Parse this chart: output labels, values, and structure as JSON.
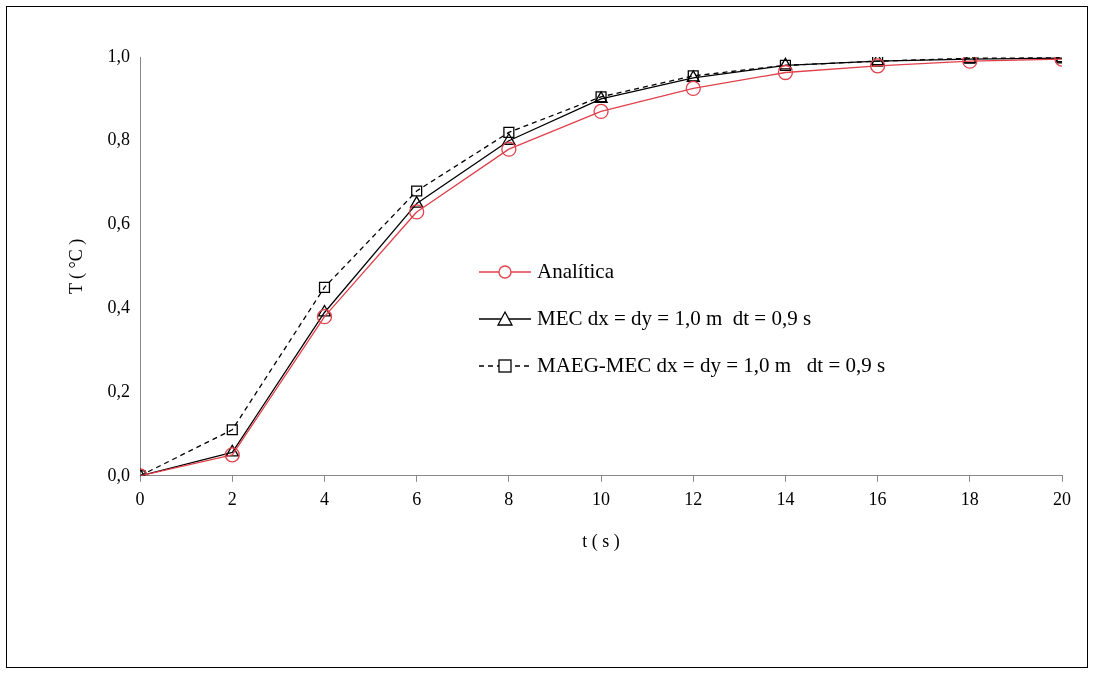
{
  "chart_data": {
    "type": "line",
    "xlabel": "t ( s )",
    "ylabel": "T ( °C )",
    "x": [
      0,
      2,
      4,
      6,
      8,
      10,
      12,
      14,
      16,
      18,
      20
    ],
    "series": [
      {
        "name": "Analítica",
        "color": "#e0404a",
        "marker": "circle",
        "line_style": "solid",
        "values": [
          0,
          0.05,
          0.38,
          0.63,
          0.78,
          0.87,
          0.925,
          0.963,
          0.979,
          0.99,
          0.995
        ]
      },
      {
        "name": "MEC dx = dy = 1,0 m  dt = 0,9 s",
        "color": "#000000",
        "marker": "triangle",
        "line_style": "solid",
        "values": [
          0,
          0.056,
          0.39,
          0.65,
          0.8,
          0.9,
          0.95,
          0.98,
          0.99,
          0.995,
          0.997
        ]
      },
      {
        "name": "MAEG-MEC dx = dy = 1,0 m   dt = 0,9 s",
        "color": "#000000",
        "marker": "square",
        "line_style": "dashed",
        "values": [
          0,
          0.11,
          0.45,
          0.68,
          0.82,
          0.905,
          0.955,
          0.98,
          0.99,
          0.997,
          0.998
        ]
      }
    ],
    "xlim": [
      0,
      20
    ],
    "xticks": [
      0,
      2,
      4,
      6,
      8,
      10,
      12,
      14,
      16,
      18,
      20
    ],
    "ylim": [
      0,
      1
    ],
    "yticks": [
      {
        "value": 0,
        "label": "0,0"
      },
      {
        "value": 0.2,
        "label": "0,2"
      },
      {
        "value": 0.4,
        "label": "0,4"
      },
      {
        "value": 0.6,
        "label": "0,6"
      },
      {
        "value": 0.8,
        "label": "0,8"
      },
      {
        "value": 1,
        "label": "1,0"
      }
    ],
    "grid": false,
    "legend": "right"
  }
}
